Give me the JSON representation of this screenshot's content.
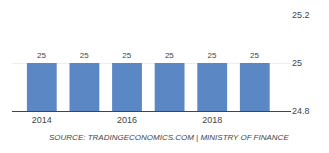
{
  "chart_data": {
    "type": "bar",
    "x": [
      2014,
      2015,
      2016,
      2017,
      2018,
      2019
    ],
    "values": [
      25,
      25,
      25,
      25,
      25,
      25
    ],
    "color": "#5b87c5",
    "xlim": [
      2013.3,
      2019.85
    ],
    "xticks": [
      2014,
      2016,
      2018
    ],
    "ylim": [
      24.8,
      25.2
    ],
    "yticks": [
      24.8,
      25,
      25.2
    ],
    "grid": true,
    "data_labels": true,
    "annotations": [
      "SOURCE: TRADINGECONOMICS.COM | MINISTRY OF FINANCE"
    ]
  }
}
